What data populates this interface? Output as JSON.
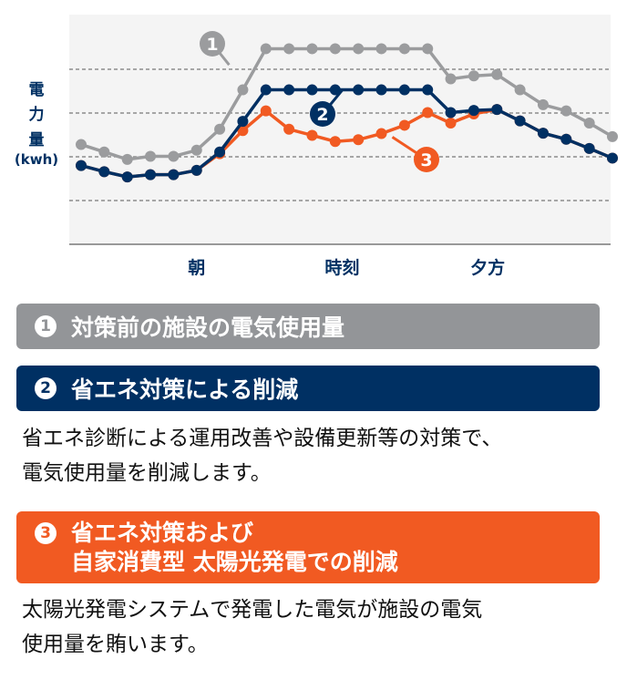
{
  "chart_data": {
    "type": "line",
    "ylabel": [
      "電",
      "力",
      "量",
      "(kwh)"
    ],
    "xticks": [
      {
        "label": "朝",
        "at": 5
      },
      {
        "label": "時刻",
        "at": 11.3
      },
      {
        "label": "夕方",
        "at": 17.6
      }
    ],
    "ylim": [
      0,
      5.25
    ],
    "grid": "horizontal dashed",
    "gridlines": [
      1,
      2,
      3,
      4
    ],
    "series": [
      {
        "name": "1",
        "color": "#9b9c9e",
        "values": [
          2.28,
          2.11,
          1.94,
          2.01,
          2.01,
          2.15,
          2.63,
          3.53,
          4.47,
          4.47,
          4.47,
          4.47,
          4.47,
          4.47,
          4.47,
          4.47,
          3.78,
          3.85,
          3.88,
          3.53,
          3.19,
          3.05,
          2.77,
          2.46
        ]
      },
      {
        "name": "3",
        "color": "#f15a22",
        "values": [
          1.8,
          1.66,
          1.54,
          1.59,
          1.59,
          1.69,
          2.07,
          2.6,
          3.05,
          2.63,
          2.49,
          2.35,
          2.39,
          2.53,
          2.72,
          3.01,
          2.77,
          2.98,
          3.08,
          2.82,
          2.54,
          2.4,
          2.19,
          1.97
        ]
      },
      {
        "name": "2",
        "color": "#003063",
        "values": [
          1.8,
          1.66,
          1.54,
          1.59,
          1.59,
          1.69,
          2.11,
          2.81,
          3.53,
          3.53,
          3.53,
          3.53,
          3.53,
          3.53,
          3.53,
          3.53,
          3.01,
          3.06,
          3.08,
          2.82,
          2.54,
          2.4,
          2.19,
          1.97
        ]
      }
    ]
  },
  "legend": [
    {
      "num": "1",
      "label": "対策前の施設の電気使用量",
      "color": "#939598"
    },
    {
      "num": "2",
      "label": "省エネ対策による削減",
      "color": "#003063",
      "desc": [
        "省エネ診断による運用改善や設備更新等の対策で、",
        "電気使用量を削減します。"
      ]
    },
    {
      "num": "3",
      "label_lines": [
        "省エネ対策および",
        "自家消費型 太陽光発電での削減"
      ],
      "color": "#f15a22",
      "desc": [
        "太陽光発電システムで発電した電気が施設の電気",
        "使用量を賄います。"
      ]
    }
  ]
}
